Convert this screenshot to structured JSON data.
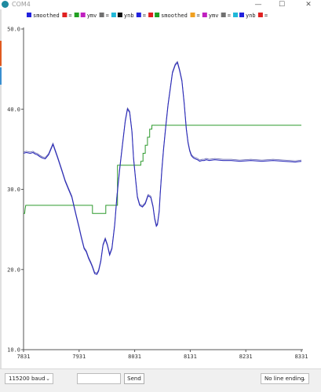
{
  "window": {
    "title": "COM4",
    "minimize": "—",
    "maximize": "☐",
    "close": "✕"
  },
  "legend": [
    {
      "label": "smoothed",
      "swatch": "#2222dd"
    },
    {
      "label": "=",
      "swatch": "#e02020"
    },
    {
      "label": "",
      "swatch": "#22a022"
    },
    {
      "label": "ymv",
      "swatch": "#c020c0"
    },
    {
      "label": "=",
      "swatch": "#707070"
    },
    {
      "label": "",
      "swatch": "#20b8d8"
    },
    {
      "label": "ynb",
      "swatch": "#111111"
    },
    {
      "label": "=",
      "swatch": "#2222dd"
    },
    {
      "label": "",
      "swatch": "#e02020"
    },
    {
      "label": "smoothed",
      "swatch": "#22a022"
    },
    {
      "label": "=",
      "swatch": "#f0a020"
    },
    {
      "label": "ymv",
      "swatch": "#c020c0"
    },
    {
      "label": "=",
      "swatch": "#707070"
    },
    {
      "label": "",
      "swatch": "#20b8d8"
    },
    {
      "label": "ynb",
      "swatch": "#2222dd"
    },
    {
      "label": "=",
      "swatch": "#e02020"
    }
  ],
  "chart_data": {
    "type": "line",
    "ylim": [
      10.0,
      50.0
    ],
    "xlim": [
      7831,
      8331
    ],
    "y_ticks": [
      "10.0",
      "20.0",
      "30.0",
      "40.0",
      "50.0"
    ],
    "x_ticks": [
      "7831",
      "7931",
      "8031",
      "8131",
      "8231",
      "8331"
    ],
    "colors": {
      "smoothed": "#2a2ab8",
      "smoothed_shadow": "#6a6ab0",
      "step": "#2e9a2e"
    },
    "series": [
      {
        "key": "smoothed",
        "x": [
          7831,
          7836,
          7843,
          7848,
          7852,
          7856,
          7860,
          7865,
          7870,
          7876,
          7884,
          7892,
          7900,
          7906,
          7912,
          7918,
          7922,
          7926,
          7931,
          7935,
          7940,
          7944,
          7948,
          7952,
          7955,
          7959,
          7963,
          7966,
          7970,
          7974,
          7978,
          7982,
          7986,
          7990,
          7995,
          7999,
          8004,
          8009,
          8014,
          8018,
          8022,
          8026,
          8029,
          8033,
          8036,
          8040,
          8045,
          8050,
          8055,
          8060,
          8064,
          8067,
          8070,
          8072,
          8075,
          8077,
          8080,
          8083,
          8087,
          8091,
          8095,
          8099,
          8104,
          8108,
          8112,
          8116,
          8120,
          8124,
          8127,
          8130,
          8133,
          8137,
          8140,
          8144,
          8148,
          8152,
          8156,
          8160,
          8165,
          8175,
          8190,
          8205,
          8220,
          8240,
          8260,
          8280,
          8300,
          8320,
          8331
        ],
        "y": [
          34.5,
          34.6,
          34.5,
          34.6,
          34.4,
          34.3,
          34.1,
          33.9,
          33.8,
          34.3,
          35.6,
          34.0,
          32.3,
          31.0,
          30.0,
          29.0,
          27.8,
          26.6,
          25.2,
          24.0,
          22.6,
          22.2,
          21.4,
          20.8,
          20.3,
          19.5,
          19.4,
          19.8,
          21.0,
          23.0,
          23.8,
          23.0,
          21.8,
          22.6,
          25.5,
          29.0,
          32.5,
          35.5,
          38.5,
          40.0,
          39.6,
          37.2,
          33.8,
          31.0,
          29.0,
          28.0,
          27.8,
          28.2,
          29.2,
          29.0,
          27.8,
          26.3,
          25.4,
          25.6,
          27.2,
          29.5,
          32.5,
          35.0,
          37.8,
          40.5,
          42.5,
          44.5,
          45.5,
          45.8,
          44.8,
          43.5,
          40.8,
          37.5,
          35.8,
          34.8,
          34.2,
          33.9,
          33.8,
          33.7,
          33.5,
          33.6,
          33.6,
          33.7,
          33.6,
          33.7,
          33.6,
          33.6,
          33.5,
          33.6,
          33.5,
          33.6,
          33.5,
          33.4,
          33.5
        ]
      },
      {
        "key": "step",
        "x": [
          7831,
          7833,
          7834,
          7835,
          7881,
          7881,
          7905,
          7905,
          7955,
          7955,
          7962,
          7962,
          7966,
          7966,
          7970,
          7970,
          7974,
          7974,
          7979,
          7979,
          7990,
          7990,
          8000,
          8000,
          8031,
          8031,
          8042,
          8042,
          8046,
          8046,
          8050,
          8050,
          8054,
          8054,
          8058,
          8058,
          8062,
          8062,
          8331
        ],
        "y": [
          27.0,
          27.0,
          27.6,
          28.0,
          28.0,
          28.0,
          28.0,
          28.0,
          28.0,
          27.0,
          27.0,
          27.0,
          27.0,
          27.0,
          27.0,
          27.0,
          27.0,
          27.0,
          27.0,
          28.0,
          28.0,
          28.0,
          28.0,
          33.0,
          33.0,
          33.0,
          33.0,
          33.5,
          33.5,
          34.5,
          34.5,
          35.5,
          35.5,
          36.5,
          36.5,
          37.5,
          37.5,
          38.0,
          38.0
        ]
      }
    ]
  },
  "bottom": {
    "baud": "115200 baud",
    "input_value": "",
    "send": "Send",
    "line_ending": "No line ending"
  }
}
